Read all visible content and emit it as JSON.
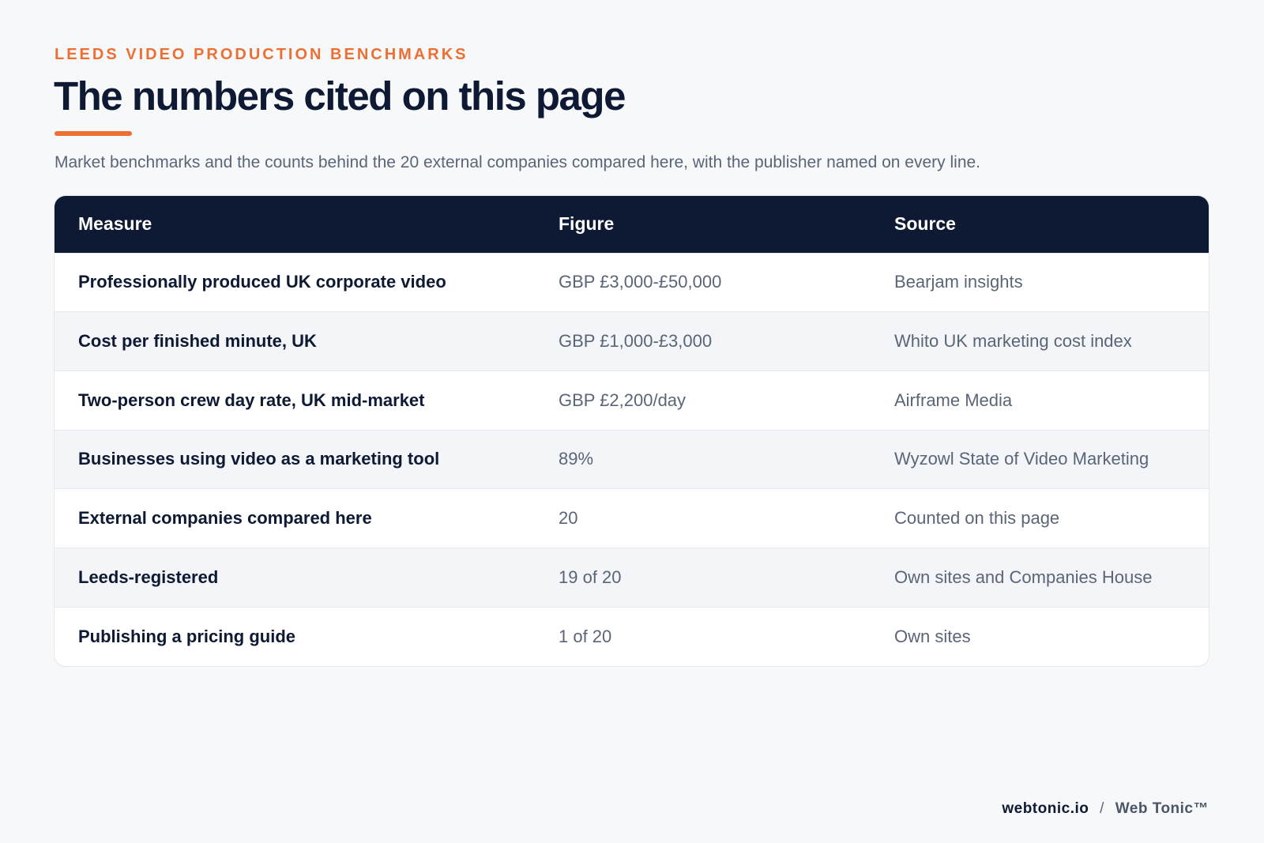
{
  "header": {
    "eyebrow": "LEEDS VIDEO PRODUCTION BENCHMARKS",
    "title": "The numbers cited on this page",
    "subtitle": "Market benchmarks and the counts behind the 20 external companies compared here, with the publisher named on every line."
  },
  "table": {
    "columns": [
      "Measure",
      "Figure",
      "Source"
    ],
    "rows": [
      {
        "measure": "Professionally produced UK corporate video",
        "figure": "GBP £3,000-£50,000",
        "source": "Bearjam insights"
      },
      {
        "measure": "Cost per finished minute, UK",
        "figure": "GBP £1,000-£3,000",
        "source": "Whito UK marketing cost index"
      },
      {
        "measure": "Two-person crew day rate, UK mid-market",
        "figure": "GBP £2,200/day",
        "source": "Airframe Media"
      },
      {
        "measure": "Businesses using video as a marketing tool",
        "figure": "89%",
        "source": "Wyzowl State of Video Marketing"
      },
      {
        "measure": "External companies compared here",
        "figure": "20",
        "source": "Counted on this page"
      },
      {
        "measure": "Leeds-registered",
        "figure": "19 of 20",
        "source": "Own sites and Companies House"
      },
      {
        "measure": "Publishing a pricing guide",
        "figure": "1 of 20",
        "source": "Own sites"
      }
    ]
  },
  "footer": {
    "domain": "webtonic.io",
    "separator": "/",
    "brand": "Web Tonic™"
  },
  "colors": {
    "accent": "#ee6f33",
    "navy": "#0e1a33",
    "muted": "#5a6577",
    "background": "#f7f8fa"
  }
}
